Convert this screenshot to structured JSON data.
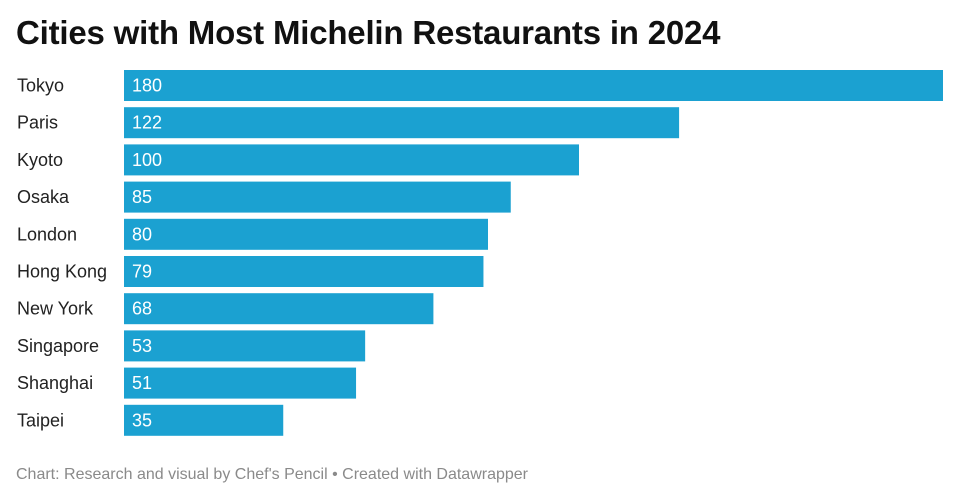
{
  "chart_data": {
    "type": "bar",
    "orientation": "horizontal",
    "title": "Cities with Most Michelin Restaurants in 2024",
    "categories": [
      "Tokyo",
      "Paris",
      "Kyoto",
      "Osaka",
      "London",
      "Hong Kong",
      "New York",
      "Singapore",
      "Shanghai",
      "Taipei"
    ],
    "values": [
      180,
      122,
      100,
      85,
      80,
      79,
      68,
      53,
      51,
      35
    ],
    "xlim": [
      0,
      180
    ],
    "grid": false,
    "data_labels": true,
    "bar_color": "#1ba1d1",
    "label_color": "#ffffff"
  },
  "footer": {
    "credit": "Chart: Research and visual by Chef's Pencil • Created with Datawrapper"
  }
}
